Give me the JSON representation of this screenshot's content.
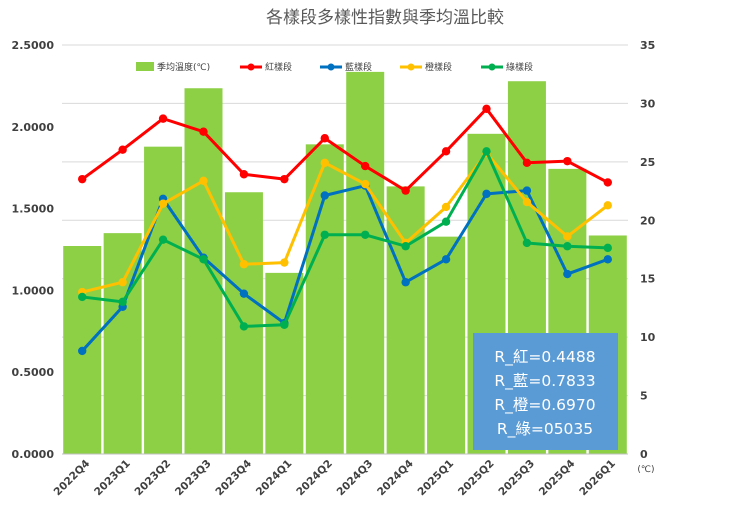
{
  "chart_data": {
    "type": "bar+line",
    "title": "各樣段多樣性指數與季均溫比較",
    "categories": [
      "2022Q4",
      "2023Q1",
      "2023Q2",
      "2023Q3",
      "2023Q4",
      "2024Q1",
      "2024Q2",
      "2024Q3",
      "2024Q4",
      "2025Q1",
      "2025Q2",
      "2025Q3",
      "2025Q4",
      "2026Q1"
    ],
    "y_left": {
      "min": 0,
      "max": 2.5,
      "ticks": [
        "0.0000",
        "0.5000",
        "1.0000",
        "1.5000",
        "2.0000",
        "2.5000"
      ]
    },
    "y_right": {
      "min": 0,
      "max": 35,
      "ticks": [
        "0",
        "5",
        "10",
        "15",
        "20",
        "25",
        "30",
        "35"
      ],
      "unit": "(℃)"
    },
    "bars": {
      "name": "季均溫度(℃)",
      "color": "#8dd046",
      "axis": "right",
      "values": [
        17.8,
        18.9,
        26.3,
        31.3,
        22.4,
        15.5,
        26.5,
        32.7,
        22.9,
        18.6,
        27.4,
        31.9,
        24.4,
        18.7
      ]
    },
    "series": [
      {
        "name": "紅樣段",
        "color": "#ff0000",
        "axis": "left",
        "values": [
          1.68,
          1.86,
          2.05,
          1.97,
          1.71,
          1.68,
          1.93,
          1.76,
          1.61,
          1.85,
          2.11,
          1.78,
          1.79,
          1.66
        ]
      },
      {
        "name": "藍樣段",
        "color": "#0070c0",
        "axis": "left",
        "values": [
          0.63,
          0.9,
          1.56,
          1.2,
          0.98,
          0.8,
          1.58,
          1.64,
          1.05,
          1.19,
          1.59,
          1.61,
          1.1,
          1.19
        ]
      },
      {
        "name": "橙樣段",
        "color": "#ffc000",
        "axis": "left",
        "values": [
          0.99,
          1.05,
          1.53,
          1.67,
          1.16,
          1.17,
          1.78,
          1.65,
          1.29,
          1.51,
          1.84,
          1.54,
          1.33,
          1.52
        ]
      },
      {
        "name": "綠樣段",
        "color": "#00b050",
        "axis": "left",
        "values": [
          0.96,
          0.93,
          1.31,
          1.19,
          0.78,
          0.79,
          1.34,
          1.34,
          1.27,
          1.42,
          1.85,
          1.29,
          1.27,
          1.26
        ]
      }
    ],
    "legend_position": "top",
    "grid": true,
    "annotation": {
      "color": "#5b9bd5",
      "lines": [
        "R_紅=0.4488",
        "R_藍=0.7833",
        "R_橙=0.6970",
        "R_綠=05035"
      ]
    }
  }
}
